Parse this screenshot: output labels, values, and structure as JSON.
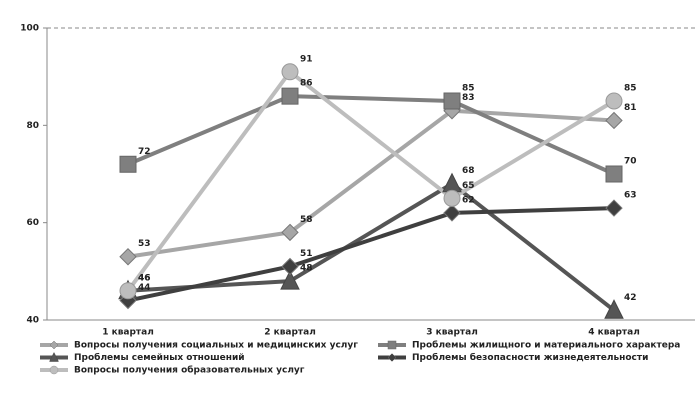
{
  "chart_data": {
    "type": "line",
    "categories": [
      "1 квартал",
      "2 квартал",
      "3 квартал",
      "4 квартал"
    ],
    "ylim": [
      40,
      100
    ],
    "yticks": [
      40,
      60,
      80,
      100
    ],
    "series": [
      {
        "name": "Вопросы получения социальных и медицинских услуг",
        "color": "#a6a6a6",
        "marker": "diamond",
        "values": [
          53,
          58,
          83,
          81
        ]
      },
      {
        "name": "Проблемы жилищного и  материального характера",
        "color": "#7f7f7f",
        "marker": "square",
        "values": [
          72,
          86,
          85,
          70
        ]
      },
      {
        "name": "Проблемы семейных отношений",
        "color": "#555555",
        "marker": "triangle",
        "values": [
          46,
          48,
          68,
          42
        ]
      },
      {
        "name": "Проблемы безопасности жизнедеятельности",
        "color": "#3f3f3f",
        "marker": "diamond",
        "values": [
          44,
          51,
          62,
          63
        ]
      },
      {
        "name": "Вопросы получения образовательных услуг",
        "color": "#bdbdbd",
        "marker": "circle",
        "values": [
          46,
          91,
          65,
          85
        ]
      }
    ]
  }
}
